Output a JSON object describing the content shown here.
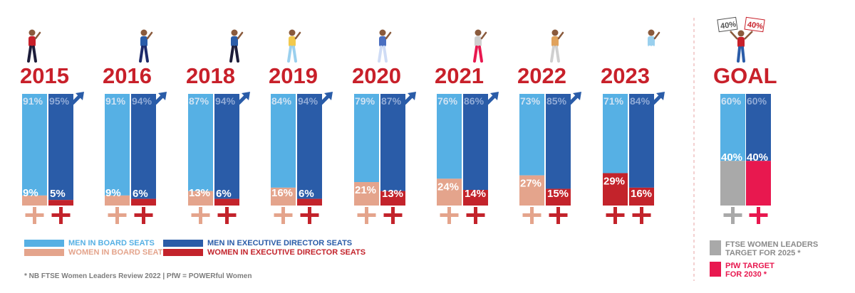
{
  "chart_data": {
    "type": "bar",
    "categories": [
      "2015",
      "2016",
      "2018",
      "2019",
      "2020",
      "2021",
      "2022",
      "2023"
    ],
    "series": [
      {
        "name": "MEN IN BOARD SEATS",
        "values": [
          91,
          91,
          87,
          84,
          79,
          76,
          73,
          71
        ]
      },
      {
        "name": "WOMEN IN BOARD SEATS",
        "values": [
          9,
          9,
          13,
          16,
          21,
          24,
          27,
          29
        ]
      },
      {
        "name": "MEN IN EXECUTIVE DIRECTOR SEATS",
        "values": [
          95,
          94,
          94,
          94,
          87,
          86,
          85,
          84
        ]
      },
      {
        "name": "WOMEN IN EXECUTIVE DIRECTOR SEATS",
        "values": [
          5,
          6,
          6,
          6,
          13,
          14,
          15,
          16
        ]
      }
    ],
    "goal": {
      "label": "GOAL",
      "board": {
        "men": 60,
        "women": 40
      },
      "executive": {
        "men": 60,
        "women": 40
      },
      "signs": [
        "40%",
        "40%"
      ]
    },
    "ylim": [
      0,
      100
    ],
    "title": "",
    "xlabel": "",
    "ylabel": ""
  },
  "legend": {
    "men_board": "MEN IN BOARD SEATS",
    "women_board": "WOMEN IN BOARD SEATS",
    "men_exec": "MEN IN EXECUTIVE DIRECTOR SEATS",
    "women_exec": "WOMEN IN EXECUTIVE DIRECTOR SEATS",
    "ftse_target_line1": "FTSE WOMEN LEADERS",
    "ftse_target_line2": "TARGET FOR 2025 *",
    "pfw_target_line1": "PfW TARGET",
    "pfw_target_line2": "FOR 2030 *"
  },
  "footnote": "* NB  FTSE Women Leaders Review 2022  |  PfW = POWERful Women",
  "colors": {
    "men_board": "#56b0e4",
    "women_board": "#e4a48c",
    "men_exec": "#2a5ca8",
    "women_exec": "#c3232b",
    "year_text": "#c8202a",
    "goal_board_women": "#a9a9a9",
    "goal_exec_women": "#e8184f",
    "men_pct_text": "#cfe2f3",
    "symbol_pink": "#e4a48c",
    "symbol_red": "#c3232b",
    "symbol_gray": "#a9a9a9",
    "symbol_magenta": "#e8184f"
  }
}
